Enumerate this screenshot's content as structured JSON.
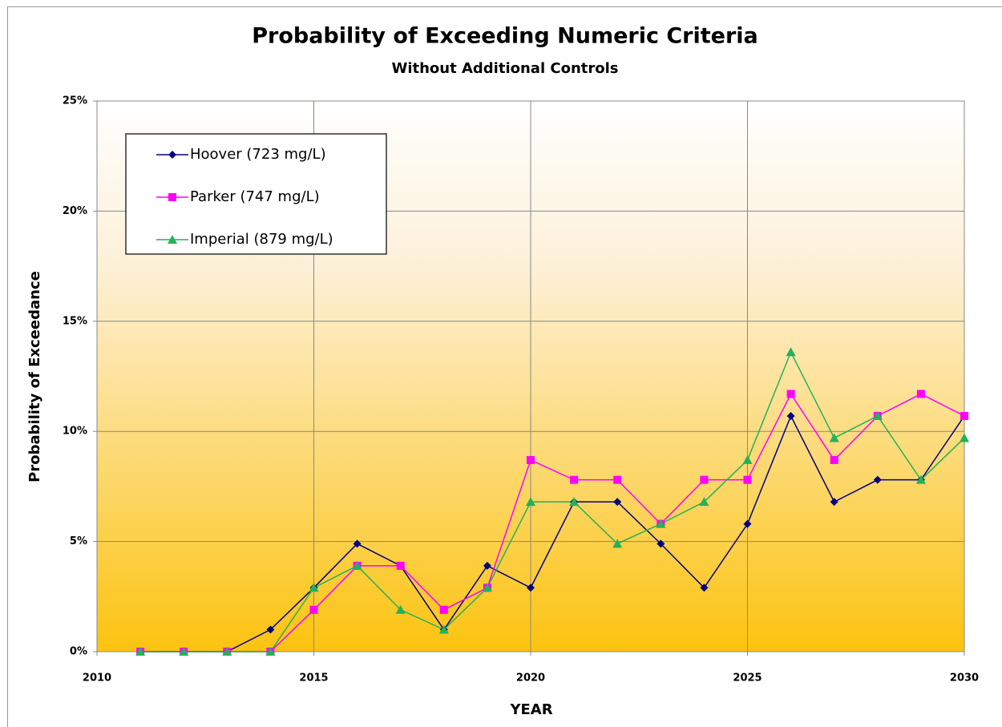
{
  "chart_data": {
    "type": "line",
    "title": "Probability of Exceeding Numeric Criteria",
    "subtitle": "Without Additional Controls",
    "x_label": "YEAR",
    "y_label": "Probability of Exceedance",
    "x": [
      2011,
      2012,
      2013,
      2014,
      2015,
      2016,
      2017,
      2018,
      2019,
      2020,
      2021,
      2022,
      2023,
      2024,
      2025,
      2026,
      2027,
      2028,
      2029,
      2030
    ],
    "series": [
      {
        "name": "Hoover (723 mg/L)",
        "color": "#000080",
        "marker": "diamond",
        "values": [
          0,
          0,
          0,
          1.0,
          2.9,
          4.9,
          3.9,
          1.0,
          3.9,
          2.9,
          6.8,
          6.8,
          4.9,
          2.9,
          5.8,
          10.7,
          6.8,
          7.8,
          7.8,
          10.7
        ]
      },
      {
        "name": "Parker (747 mg/L)",
        "color": "#ff00ff",
        "marker": "square",
        "values": [
          0,
          0,
          0,
          0,
          1.9,
          3.9,
          3.9,
          1.9,
          2.9,
          8.7,
          7.8,
          7.8,
          5.8,
          7.8,
          7.8,
          11.7,
          8.7,
          10.7,
          11.7,
          10.7
        ]
      },
      {
        "name": "Imperial (879 mg/L)",
        "color": "#22b25a",
        "marker": "triangle",
        "values": [
          0,
          0,
          0,
          0,
          2.9,
          3.9,
          1.9,
          1.0,
          2.9,
          6.8,
          6.8,
          4.9,
          5.8,
          6.8,
          8.7,
          13.6,
          9.7,
          10.7,
          7.8,
          9.7
        ]
      }
    ],
    "xlim": [
      2010,
      2030
    ],
    "xticks": [
      2010,
      2015,
      2020,
      2025,
      2030
    ],
    "ylim": [
      0,
      25
    ],
    "yticks": [
      {
        "value": 0,
        "label": "0%"
      },
      {
        "value": 5,
        "label": "5%"
      },
      {
        "value": 10,
        "label": "10%"
      },
      {
        "value": 15,
        "label": "15%"
      },
      {
        "value": 20,
        "label": "20%"
      },
      {
        "value": 25,
        "label": "25%"
      }
    ],
    "grid": true,
    "legend": "upper left"
  }
}
